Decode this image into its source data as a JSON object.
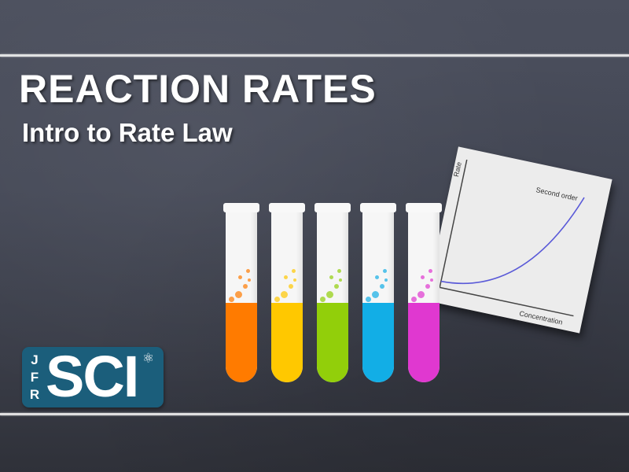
{
  "slide": {
    "title": "REACTION RATES",
    "subtitle": "Intro to Rate Law"
  },
  "chart_card": {
    "y_axis_label": "Rate",
    "x_axis_label": "Concentration",
    "curve_label": "Second order",
    "curve_color": "#5a5ad8"
  },
  "chart_data": {
    "type": "line",
    "title": "",
    "xlabel": "Concentration",
    "ylabel": "Rate",
    "series": [
      {
        "name": "Second order",
        "x": [
          0,
          0.2,
          0.4,
          0.6,
          0.8,
          1.0
        ],
        "values": [
          0,
          0.04,
          0.16,
          0.36,
          0.64,
          1.0
        ]
      }
    ],
    "grid": false,
    "legend": "none"
  },
  "test_tubes": [
    {
      "color": "#ff7b00"
    },
    {
      "color": "#ffc800"
    },
    {
      "color": "#92cf0a"
    },
    {
      "color": "#12aee6"
    },
    {
      "color": "#e038d0"
    }
  ],
  "logo": {
    "letters_vertical": [
      "J",
      "F",
      "R"
    ],
    "main_text": "SCI",
    "icon": "atom-icon",
    "bg_color": "#1b5e7b"
  }
}
